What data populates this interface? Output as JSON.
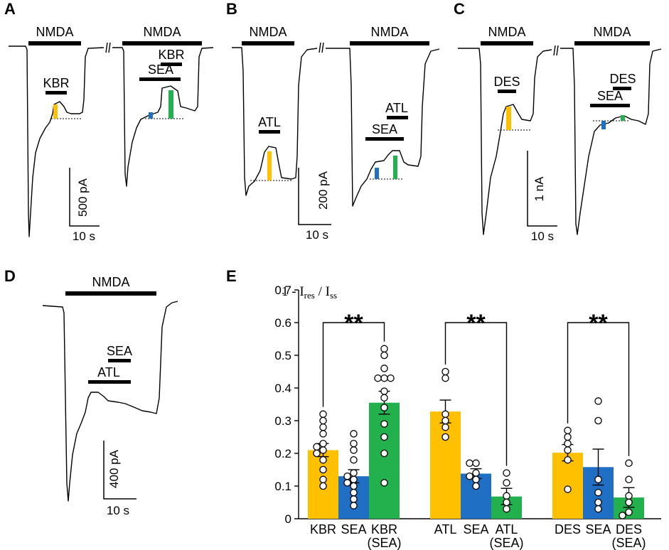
{
  "colors": {
    "yellow": "#FFC000",
    "blue": "#1F6FC5",
    "green": "#22B14C",
    "black": "#000000"
  },
  "panels": {
    "a": {
      "letter": "A",
      "drug_labels": [
        "NMDA",
        "NMDA",
        "KBR",
        "SEA",
        "KBR"
      ],
      "scale_y": "500 pA",
      "scale_x": "10 s"
    },
    "b": {
      "letter": "B",
      "drug_labels": [
        "NMDA",
        "NMDA",
        "ATL",
        "SEA",
        "ATL"
      ],
      "scale_y": "200 pA",
      "scale_x": "10 s"
    },
    "c": {
      "letter": "C",
      "drug_labels": [
        "NMDA",
        "NMDA",
        "DES",
        "SEA",
        "DES"
      ],
      "scale_y": "1 nA",
      "scale_x": "10 s"
    },
    "d": {
      "letter": "D",
      "drug_labels": [
        "NMDA",
        "SEA",
        "ATL"
      ],
      "scale_y": "400 pA",
      "scale_x": "10 s"
    },
    "e": {
      "letter": "E"
    }
  },
  "chart_data": {
    "type": "bar",
    "ylabel": "1 - I_res / I_ss",
    "ylabel_main": "1 - I",
    "ylabel_sub1": "res",
    "ylabel_mid": " / I",
    "ylabel_sub2": "ss",
    "ylim": [
      0,
      0.7
    ],
    "yticks": [
      "0",
      "0.1",
      "0.2",
      "0.3",
      "0.4",
      "0.5",
      "0.6",
      "0.7"
    ],
    "groups": [
      {
        "bars": [
          {
            "label": [
              "KBR"
            ],
            "value": 0.21,
            "sem": 0.02,
            "color": "#FFC000",
            "points": [
              0.32,
              0.3,
              0.28,
              0.26,
              0.23,
              0.22,
              0.21,
              0.2,
              0.18,
              0.15,
              0.12,
              0.1
            ]
          },
          {
            "label": [
              "SEA"
            ],
            "value": 0.13,
            "sem": 0.02,
            "color": "#1F6FC5",
            "points": [
              0.26,
              0.23,
              0.21,
              0.18,
              0.14,
              0.13,
              0.12,
              0.11,
              0.1,
              0.08,
              0.06,
              0.04
            ]
          },
          {
            "label": [
              "KBR",
              "(SEA)"
            ],
            "value": 0.355,
            "sem": 0.035,
            "color": "#22B14C",
            "points": [
              0.52,
              0.5,
              0.46,
              0.43,
              0.43,
              0.43,
              0.39,
              0.37,
              0.34,
              0.29,
              0.25,
              0.2,
              0.11
            ]
          }
        ],
        "significance": "**"
      },
      {
        "bars": [
          {
            "label": [
              "ATL"
            ],
            "value": 0.328,
            "sem": 0.035,
            "color": "#FFC000",
            "points": [
              0.45,
              0.43,
              0.32,
              0.3,
              0.28,
              0.25
            ]
          },
          {
            "label": [
              "SEA"
            ],
            "value": 0.138,
            "sem": 0.015,
            "color": "#1F6FC5",
            "points": [
              0.17,
              0.17,
              0.14,
              0.13,
              0.12,
              0.1
            ]
          },
          {
            "label": [
              "ATL",
              "(SEA)"
            ],
            "value": 0.068,
            "sem": 0.025,
            "color": "#22B14C",
            "points": [
              0.14,
              0.11,
              0.07,
              0.05,
              0.03
            ]
          }
        ],
        "significance": "**"
      },
      {
        "bars": [
          {
            "label": [
              "DES"
            ],
            "value": 0.202,
            "sem": 0.025,
            "color": "#FFC000",
            "points": [
              0.27,
              0.25,
              0.23,
              0.21,
              0.18,
              0.09
            ]
          },
          {
            "label": [
              "SEA"
            ],
            "value": 0.158,
            "sem": 0.055,
            "color": "#1F6FC5",
            "points": [
              0.36,
              0.3,
              0.12,
              0.08,
              0.05,
              0.03
            ]
          },
          {
            "label": [
              "DES",
              "(SEA)"
            ],
            "value": 0.065,
            "sem": 0.03,
            "color": "#22B14C",
            "points": [
              0.17,
              0.12,
              0.07,
              0.05,
              0.02,
              0.01
            ]
          }
        ],
        "significance": "**"
      }
    ]
  }
}
